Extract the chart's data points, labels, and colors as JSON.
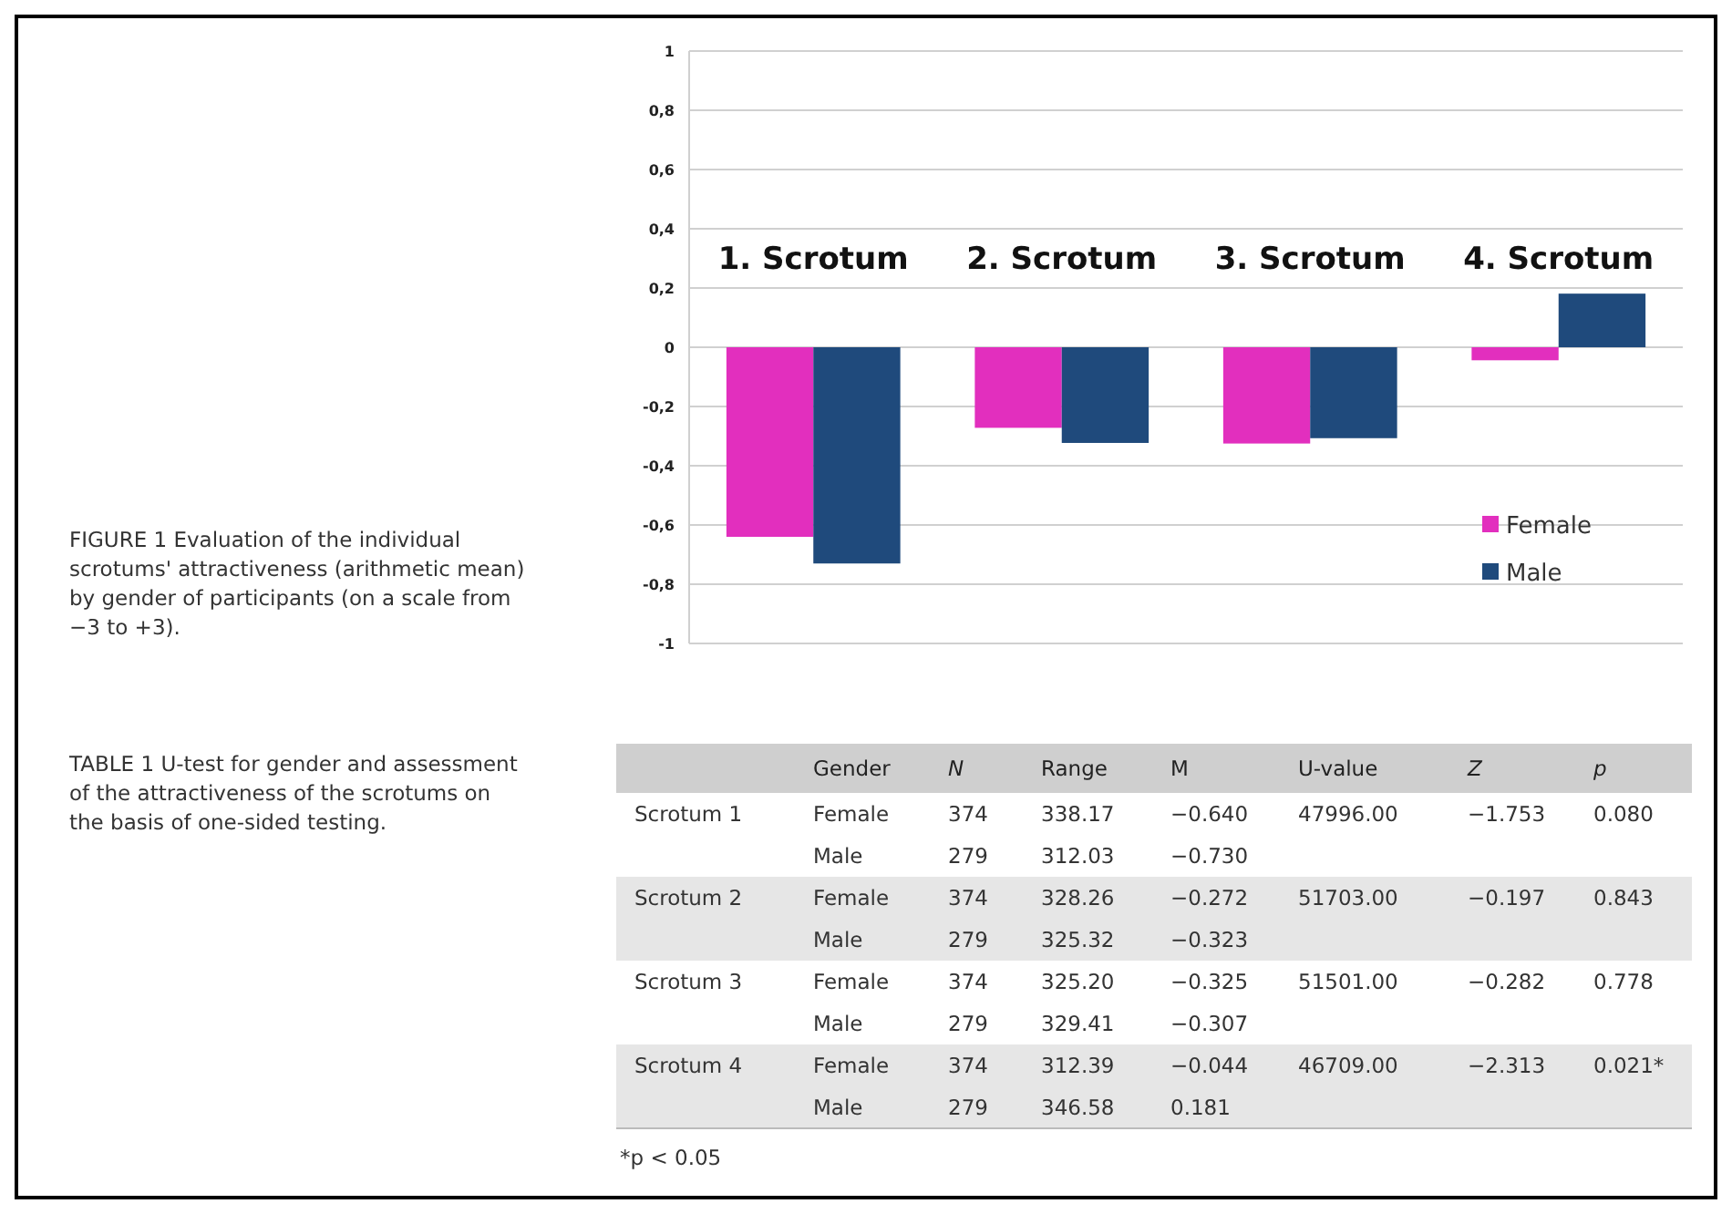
{
  "chart_data": [
    {
      "type": "bar",
      "title": "FIGURE 1 Evaluation of the individual scrotums' attractiveness (arithmetic mean) by gender of participants (on a scale from −3 to +3).",
      "categories": [
        "1. Scrotum",
        "2. Scrotum",
        "3. Scrotum",
        "4. Scrotum"
      ],
      "series": [
        {
          "name": "Female",
          "color": "#e22fbe",
          "values": [
            -0.64,
            -0.272,
            -0.325,
            -0.044
          ]
        },
        {
          "name": "Male",
          "color": "#1f4a7c",
          "values": [
            -0.73,
            -0.323,
            -0.307,
            0.181
          ]
        }
      ],
      "ylim": [
        -1,
        1
      ],
      "yticks": [
        -1,
        {
          "value": -0.8,
          "label": "-0,8"
        },
        {
          "value": -0.6,
          "label": "-0,6"
        },
        {
          "value": -0.4,
          "label": "-0,4"
        },
        {
          "value": -0.2,
          "label": "-0,2"
        },
        0,
        {
          "value": 0.2,
          "label": "0,2"
        },
        {
          "value": 0.4,
          "label": "0,4"
        },
        {
          "value": 0.6,
          "label": "0,6"
        },
        {
          "value": 0.8,
          "label": "0,8"
        },
        1
      ],
      "grid": "y",
      "legend": "bottom right"
    },
    {
      "type": "other",
      "title": "TABLE 1 U-test for gender and assessment of the attractiveness of the scrotums on the basis of one-sided testing.",
      "categories": [
        null,
        "Gender",
        "N",
        "Range",
        "M",
        "U-value",
        "Z",
        "p"
      ],
      "cell_labels": [
        [
          "Scrotum 1",
          "Female",
          "374",
          "338.17",
          "−0.640",
          "47996.00",
          "−1.753",
          "0.080"
        ],
        [
          null,
          "Male",
          "279",
          "312.03",
          "−0.730",
          null,
          null,
          null
        ],
        [
          "Scrotum 2",
          "Female",
          "374",
          "328.26",
          "−0.272",
          "51703.00",
          "−0.197",
          "0.843"
        ],
        [
          null,
          "Male",
          "279",
          "325.32",
          "−0.323",
          null,
          null,
          null
        ],
        [
          "Scrotum 3",
          "Female",
          "374",
          "325.20",
          "−0.325",
          "51501.00",
          "−0.282",
          "0.778"
        ],
        [
          null,
          "Male",
          "279",
          "329.41",
          "−0.307",
          null,
          null,
          null
        ],
        [
          "Scrotum 4",
          "Female",
          "374",
          "312.39",
          "−0.044",
          "46709.00",
          "−2.313",
          "0.021*"
        ],
        [
          null,
          "Male",
          "279",
          "346.58",
          "0.181",
          null,
          null,
          null
        ]
      ],
      "annotations": [
        "*p < 0.05"
      ]
    }
  ]
}
